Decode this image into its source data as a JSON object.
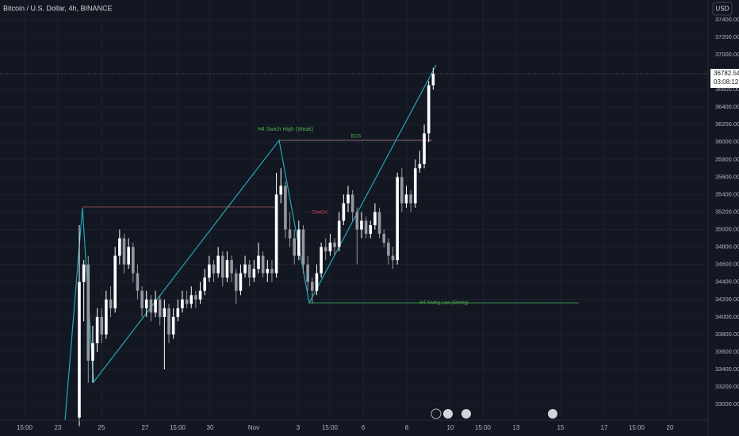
{
  "chart_data": {
    "type": "candlestick",
    "title": "Bitcoin / U.S. Dollar, 4h, BINANCE",
    "currency": "USD",
    "countdown": "03:08:12",
    "up_color": "#ffffff",
    "down_color": "#9598a1",
    "ylim": [
      32820,
      37625
    ],
    "yticks": [
      {
        "value": 33000,
        "label": "33000.00"
      },
      {
        "value": 33200,
        "label": "33200.00"
      },
      {
        "value": 33400,
        "label": "33400.00"
      },
      {
        "value": 33600,
        "label": "33600.00"
      },
      {
        "value": 33800,
        "label": "33800.00"
      },
      {
        "value": 34000,
        "label": "34000.00"
      },
      {
        "value": 34200,
        "label": "34200.00"
      },
      {
        "value": 34400,
        "label": "34400.00"
      },
      {
        "value": 34600,
        "label": "34600.00"
      },
      {
        "value": 34800,
        "label": "34800.00"
      },
      {
        "value": 35000,
        "label": "35000.00"
      },
      {
        "value": 35200,
        "label": "35200.00"
      },
      {
        "value": 35400,
        "label": "35400.00"
      },
      {
        "value": 35600,
        "label": "35600.00"
      },
      {
        "value": 35800,
        "label": "35800.00"
      },
      {
        "value": 36000,
        "label": "36000.00"
      },
      {
        "value": 36200,
        "label": "36200.00"
      },
      {
        "value": 36400,
        "label": "36400.00"
      },
      {
        "value": 36600,
        "label": "36600.00"
      },
      {
        "value": 37000,
        "label": "37000.00"
      },
      {
        "value": 37200,
        "label": "37200.00"
      },
      {
        "value": 37400,
        "label": "37400.00"
      }
    ],
    "x_labels": [
      "15:00",
      "23",
      "25",
      "27",
      "15:00",
      "30",
      "Nov",
      "3",
      "15:00",
      "6",
      "8",
      "10",
      "15:00",
      "13",
      "15",
      "17",
      "15:00",
      "20"
    ],
    "annotations": [
      "H4 Swich High (Weak)",
      "BOS",
      "ChoCH",
      "H4 Swing Low (Strong)"
    ],
    "candles": [
      [
        32850,
        35050,
        32750,
        34400
      ],
      [
        34400,
        34650,
        33950,
        34600
      ],
      [
        34600,
        34700,
        33250,
        33500
      ],
      [
        33500,
        33900,
        33250,
        33700
      ],
      [
        33700,
        34100,
        33600,
        34000
      ],
      [
        34000,
        34100,
        33700,
        33800
      ],
      [
        33800,
        34300,
        33750,
        34200
      ],
      [
        34200,
        34350,
        34000,
        34100
      ],
      [
        34100,
        34800,
        34050,
        34700
      ],
      [
        34700,
        35000,
        34600,
        34900
      ],
      [
        34900,
        34950,
        34500,
        34600
      ],
      [
        34600,
        34900,
        34550,
        34800
      ],
      [
        34800,
        34850,
        34400,
        34500
      ],
      [
        34500,
        34600,
        34200,
        34300
      ],
      [
        34300,
        34350,
        34000,
        34100
      ],
      [
        34100,
        34300,
        34000,
        34200
      ],
      [
        34200,
        34250,
        33950,
        34050
      ],
      [
        34050,
        34300,
        34000,
        34200
      ],
      [
        34200,
        34250,
        33900,
        34000
      ],
      [
        34000,
        34200,
        33400,
        34100
      ],
      [
        34100,
        34150,
        33700,
        33800
      ],
      [
        33800,
        34100,
        33750,
        34000
      ],
      [
        34000,
        34200,
        33950,
        34100
      ],
      [
        34100,
        34300,
        34050,
        34200
      ],
      [
        34200,
        34300,
        34100,
        34150
      ],
      [
        34150,
        34350,
        34100,
        34250
      ],
      [
        34250,
        34300,
        34100,
        34200
      ],
      [
        34200,
        34400,
        34150,
        34300
      ],
      [
        34300,
        34550,
        34250,
        34450
      ],
      [
        34450,
        34700,
        34400,
        34600
      ],
      [
        34600,
        34650,
        34400,
        34500
      ],
      [
        34500,
        34800,
        34450,
        34700
      ],
      [
        34700,
        34750,
        34350,
        34450
      ],
      [
        34450,
        34750,
        34400,
        34650
      ],
      [
        34650,
        34700,
        34400,
        34500
      ],
      [
        34500,
        34550,
        34150,
        34300
      ],
      [
        34300,
        34600,
        34250,
        34500
      ],
      [
        34500,
        34700,
        34450,
        34600
      ],
      [
        34600,
        34650,
        34350,
        34450
      ],
      [
        34450,
        34650,
        34400,
        34550
      ],
      [
        34550,
        34850,
        34500,
        34700
      ],
      [
        34700,
        34750,
        34450,
        34500
      ],
      [
        34500,
        34650,
        34400,
        34550
      ],
      [
        34550,
        34650,
        34400,
        34500
      ],
      [
        34500,
        35650,
        34450,
        35400
      ],
      [
        35400,
        35700,
        35300,
        35500
      ],
      [
        35500,
        35550,
        34900,
        35000
      ],
      [
        35000,
        35200,
        34800,
        34900
      ],
      [
        34900,
        35000,
        34600,
        34700
      ],
      [
        34700,
        35100,
        34650,
        35000
      ],
      [
        35000,
        35050,
        34500,
        34600
      ],
      [
        34600,
        34700,
        34300,
        34400
      ],
      [
        34400,
        34450,
        34150,
        34300
      ],
      [
        34300,
        34600,
        34250,
        34500
      ],
      [
        34500,
        34850,
        34450,
        34800
      ],
      [
        34800,
        34900,
        34650,
        34750
      ],
      [
        34750,
        34950,
        34700,
        34850
      ],
      [
        34850,
        34900,
        34700,
        34800
      ],
      [
        34800,
        35200,
        34750,
        35100
      ],
      [
        35100,
        35400,
        35050,
        35300
      ],
      [
        35300,
        35500,
        35200,
        35400
      ],
      [
        35400,
        35450,
        35100,
        35200
      ],
      [
        35200,
        35250,
        34600,
        35000
      ],
      [
        35000,
        35200,
        34900,
        35100
      ],
      [
        35100,
        35150,
        34900,
        34950
      ],
      [
        34950,
        35100,
        34900,
        35050
      ],
      [
        35050,
        35300,
        35000,
        35200
      ],
      [
        35200,
        35250,
        34900,
        34950
      ],
      [
        34950,
        35000,
        34800,
        34850
      ],
      [
        34850,
        34900,
        34600,
        34700
      ],
      [
        34700,
        34800,
        34550,
        34650
      ],
      [
        34650,
        35650,
        34600,
        35600
      ],
      [
        35600,
        35700,
        35200,
        35300
      ],
      [
        35300,
        35500,
        35250,
        35400
      ],
      [
        35400,
        35450,
        35200,
        35300
      ],
      [
        35300,
        35800,
        35250,
        35700
      ],
      [
        35700,
        35900,
        35650,
        35750
      ],
      [
        35750,
        36200,
        35700,
        36100
      ],
      [
        36100,
        36700,
        36000,
        36650
      ],
      [
        36650,
        36850,
        36600,
        36782.54
      ]
    ]
  }
}
